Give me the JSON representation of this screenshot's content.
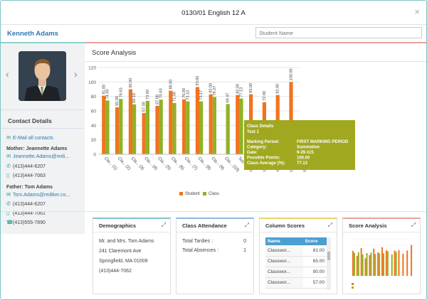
{
  "header": {
    "title": "0130/01 English 12 A",
    "close_glyph": "×"
  },
  "student": {
    "name": "Kenneth Adams"
  },
  "search": {
    "placeholder": "Student Name"
  },
  "sidebar": {
    "prev_glyph": "‹",
    "next_glyph": "›",
    "contact_title": "Contact Details",
    "email_all": "E-Mail all contacts",
    "mother": {
      "label": "Mother: Jeannette Adams",
      "email": "Jeannette.Adams@redi...",
      "phone1": "(413)444-6207",
      "phone2": "(413)444-7063"
    },
    "father": {
      "label": "Father: Tom Adams",
      "email": "Tom.Adams@rediker.co...",
      "phone1": "(413)444-6207",
      "phone2": "(413)444-7061",
      "phone3": "(413)555-7890"
    }
  },
  "score_analysis": {
    "title": "Score Analysis",
    "tooltip": {
      "heading": "Class Details",
      "subheading": "Test 1",
      "rows": [
        {
          "label": "Marking Period:",
          "value": "FIRST MARKING PERIOD"
        },
        {
          "label": "Category:",
          "value": "Summative"
        },
        {
          "label": "Date:",
          "value": "9-29-115"
        },
        {
          "label": "Possible Points:",
          "value": "100.00"
        },
        {
          "label": "Class Average (%):",
          "value": "77.13"
        }
      ]
    }
  },
  "chart_data": {
    "type": "bar",
    "categories": [
      "Cla... (1)",
      "Cla... (2)",
      "Cla... (3)",
      "Cla... (4)",
      "Cla... (5)",
      "Cla... (6)",
      "Cla... (7)",
      "Cla... (8)",
      "Cla... (9)",
      "Cla... (10)",
      "Tes... (11)",
      "Cla... (12)",
      "Cla... (13)",
      "Tes... (14)",
      "Pro... (15)"
    ],
    "series": [
      {
        "name": "Student",
        "color": "#f0741e",
        "values": [
          81.0,
          65.0,
          90.0,
          57.0,
          67.0,
          88.0,
          76.0,
          93.0,
          83.0,
          null,
          82.0,
          83.0,
          72.0,
          82.0,
          100.0
        ]
      },
      {
        "name": "Class",
        "color": "#8fb226",
        "values": [
          74.43,
          76.63,
          69.1,
          73.9,
          75.63,
          71.0,
          73.1,
          73.17,
          79.27,
          69.47,
          77.13,
          null,
          null,
          null,
          null
        ]
      }
    ],
    "ylim": [
      0,
      120
    ],
    "yticks": [
      0,
      20,
      40,
      60,
      80,
      100,
      120
    ],
    "value_labels": {
      "student": [
        "81.00",
        "65.00",
        "90.00",
        "57.00",
        "67.00",
        "88.00",
        "76.00",
        "93.00",
        "83.00",
        "",
        "82.00",
        "83.00",
        "72.00",
        "82.00",
        "100.00"
      ],
      "class": [
        "74.43",
        "76.63",
        "69.10",
        "73.90",
        "75.63",
        "71.00",
        "73.10",
        "73.17",
        "79.27",
        "69.47",
        "77.13",
        "",
        "",
        "",
        ""
      ]
    },
    "grid": true,
    "legend": "bottom"
  },
  "cards": {
    "demographics": {
      "title": "Demographics",
      "lines": [
        "Mr. and Mrs. Tom Adams",
        "241 Claremont Ave",
        "Springfield, MA 01009",
        "(413)444-7062"
      ]
    },
    "attendance": {
      "title": "Class Attendance",
      "tardies_label": "Total Tardies :",
      "tardies": "0",
      "absences_label": "Total Absences :",
      "absences": "1"
    },
    "column_scores": {
      "title": "Column Scores",
      "headers": [
        "Name",
        "Score"
      ],
      "rows": [
        {
          "name": "Classwor...",
          "score": "81.00"
        },
        {
          "name": "Classwor...",
          "score": "65.00"
        },
        {
          "name": "Classwor...",
          "score": "90.00"
        },
        {
          "name": "Classwor...",
          "score": "57.00"
        }
      ]
    },
    "score_analysis_mini": {
      "title": "Score Analysis"
    }
  },
  "colors": {
    "accent": "#2a7ab0",
    "student_bar": "#f0741e",
    "class_bar": "#8fb226",
    "tooltip_bg": "#a0a820"
  },
  "icons": {
    "expand": "⤢",
    "email": "✉",
    "phone": "✆",
    "mobile": "▯",
    "fax": "☎"
  }
}
